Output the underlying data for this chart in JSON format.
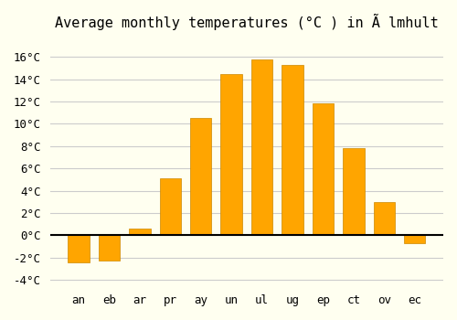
{
  "title": "Average monthly temperatures (°C ) in Ã lmhult",
  "months": [
    "an",
    "eb",
    "ar",
    "pr",
    "ay",
    "un",
    "ul",
    "ug",
    "ep",
    "ct",
    "ov",
    "ec"
  ],
  "values": [
    -2.4,
    -2.3,
    0.6,
    5.1,
    10.5,
    14.5,
    15.8,
    15.3,
    11.8,
    7.8,
    3.0,
    -0.7
  ],
  "bar_color": "#FFA500",
  "bar_edge_color": "#CC8800",
  "background_color": "#FFFFF0",
  "grid_color": "#CCCCCC",
  "zero_line_color": "#000000",
  "ylim": [
    -4.5,
    17.5
  ],
  "yticks": [
    -4,
    -2,
    0,
    2,
    4,
    6,
    8,
    10,
    12,
    14,
    16
  ],
  "title_fontsize": 11,
  "tick_fontsize": 9,
  "font_family": "monospace"
}
